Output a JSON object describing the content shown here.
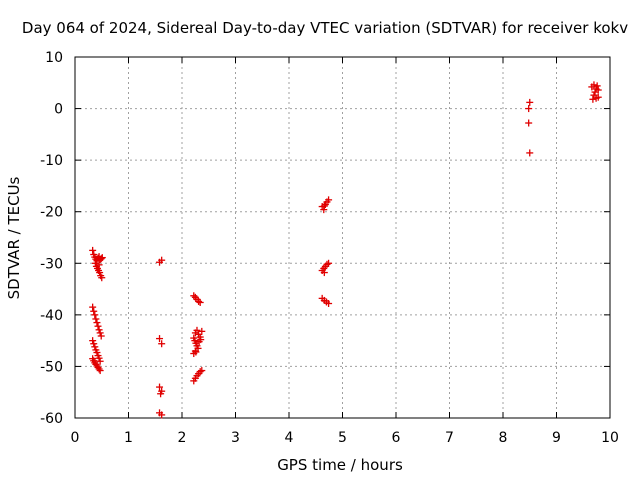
{
  "chart_data": {
    "type": "scatter",
    "title": "Day 064 of 2024, Sidereal Day-to-day VTEC variation (SDTVAR) for receiver kokv",
    "xlabel": "GPS time / hours",
    "ylabel": "SDTVAR / TECUs",
    "xlim": [
      0,
      10
    ],
    "ylim": [
      -60,
      10
    ],
    "xticks": [
      0,
      1,
      2,
      3,
      4,
      5,
      6,
      7,
      8,
      9,
      10
    ],
    "yticks": [
      -60,
      -50,
      -40,
      -30,
      -20,
      -10,
      0,
      10
    ],
    "grid": true,
    "marker": "plus",
    "marker_color": "#e00000",
    "series": [
      {
        "name": "SDTVAR",
        "points": [
          [
            0.33,
            -27.5
          ],
          [
            0.35,
            -28.3
          ],
          [
            0.37,
            -28.8
          ],
          [
            0.39,
            -29.2
          ],
          [
            0.41,
            -29.5
          ],
          [
            0.43,
            -29.0
          ],
          [
            0.45,
            -28.7
          ],
          [
            0.47,
            -29.3
          ],
          [
            0.49,
            -29.1
          ],
          [
            0.51,
            -28.9
          ],
          [
            0.38,
            -30.0
          ],
          [
            0.4,
            -30.6
          ],
          [
            0.42,
            -31.0
          ],
          [
            0.44,
            -31.4
          ],
          [
            0.46,
            -31.8
          ],
          [
            0.48,
            -32.4
          ],
          [
            0.5,
            -32.8
          ],
          [
            0.45,
            -30.3
          ],
          [
            0.33,
            -38.5
          ],
          [
            0.35,
            -39.3
          ],
          [
            0.37,
            -40.0
          ],
          [
            0.39,
            -40.8
          ],
          [
            0.41,
            -41.5
          ],
          [
            0.43,
            -42.2
          ],
          [
            0.45,
            -42.9
          ],
          [
            0.47,
            -43.5
          ],
          [
            0.49,
            -44.1
          ],
          [
            0.33,
            -45.0
          ],
          [
            0.35,
            -45.6
          ],
          [
            0.37,
            -46.2
          ],
          [
            0.39,
            -46.8
          ],
          [
            0.41,
            -47.3
          ],
          [
            0.43,
            -47.9
          ],
          [
            0.45,
            -48.4
          ],
          [
            0.47,
            -49.0
          ],
          [
            0.33,
            -48.5
          ],
          [
            0.35,
            -48.9
          ],
          [
            0.37,
            -49.3
          ],
          [
            0.39,
            -49.6
          ],
          [
            0.41,
            -49.9
          ],
          [
            0.43,
            -50.2
          ],
          [
            0.45,
            -50.5
          ],
          [
            0.47,
            -50.8
          ],
          [
            1.58,
            -29.8
          ],
          [
            1.62,
            -29.4
          ],
          [
            1.58,
            -44.6
          ],
          [
            1.62,
            -45.6
          ],
          [
            1.58,
            -54.0
          ],
          [
            1.62,
            -54.8
          ],
          [
            1.6,
            -55.3
          ],
          [
            1.58,
            -59.0
          ],
          [
            1.62,
            -59.4
          ],
          [
            2.22,
            -36.3
          ],
          [
            2.25,
            -36.6
          ],
          [
            2.28,
            -37.0
          ],
          [
            2.31,
            -37.4
          ],
          [
            2.34,
            -37.6
          ],
          [
            2.25,
            -43.5
          ],
          [
            2.28,
            -43.0
          ],
          [
            2.31,
            -43.8
          ],
          [
            2.34,
            -44.3
          ],
          [
            2.37,
            -43.2
          ],
          [
            2.22,
            -44.5
          ],
          [
            2.24,
            -45.0
          ],
          [
            2.26,
            -45.5
          ],
          [
            2.28,
            -46.0
          ],
          [
            2.3,
            -46.5
          ],
          [
            2.25,
            -47.0
          ],
          [
            2.32,
            -45.2
          ],
          [
            2.35,
            -44.8
          ],
          [
            2.22,
            -47.5
          ],
          [
            2.26,
            -47.2
          ],
          [
            2.22,
            -52.8
          ],
          [
            2.25,
            -52.3
          ],
          [
            2.28,
            -51.8
          ],
          [
            2.31,
            -51.4
          ],
          [
            2.34,
            -51.0
          ],
          [
            2.37,
            -50.8
          ],
          [
            4.62,
            -19.0
          ],
          [
            4.65,
            -19.6
          ],
          [
            4.68,
            -18.6
          ],
          [
            4.71,
            -18.1
          ],
          [
            4.74,
            -17.7
          ],
          [
            4.66,
            -18.9
          ],
          [
            4.62,
            -31.4
          ],
          [
            4.65,
            -31.0
          ],
          [
            4.68,
            -30.6
          ],
          [
            4.71,
            -30.2
          ],
          [
            4.74,
            -30.0
          ],
          [
            4.66,
            -31.8
          ],
          [
            4.62,
            -36.8
          ],
          [
            4.66,
            -37.2
          ],
          [
            4.7,
            -37.5
          ],
          [
            4.74,
            -37.8
          ],
          [
            8.48,
            0.0
          ],
          [
            8.5,
            1.2
          ],
          [
            8.48,
            -2.8
          ],
          [
            8.5,
            -8.6
          ],
          [
            9.68,
            1.8
          ],
          [
            9.7,
            2.6
          ],
          [
            9.72,
            3.2
          ],
          [
            9.74,
            3.8
          ],
          [
            9.76,
            4.4
          ],
          [
            9.78,
            2.2
          ],
          [
            9.7,
            4.6
          ],
          [
            9.74,
            2.0
          ],
          [
            9.78,
            3.6
          ],
          [
            9.66,
            4.2
          ]
        ]
      }
    ]
  }
}
